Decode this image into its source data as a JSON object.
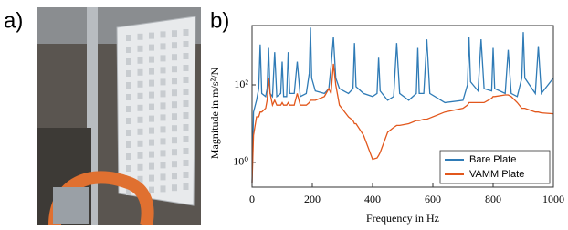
{
  "panel_labels": [
    "a)",
    "b)"
  ],
  "chart_data": {
    "type": "line",
    "xlabel": "Frequency in Hz",
    "ylabel": "Magnitude in m/s²/N",
    "x": [
      0,
      5,
      15,
      22,
      27,
      32,
      45,
      50,
      55,
      60,
      68,
      75,
      82,
      95,
      100,
      105,
      115,
      120,
      125,
      140,
      150,
      160,
      180,
      190,
      194,
      198,
      210,
      240,
      255,
      262,
      270,
      278,
      290,
      320,
      335,
      340,
      345,
      370,
      400,
      415,
      420,
      425,
      450,
      470,
      480,
      490,
      520,
      545,
      550,
      555,
      570,
      580,
      590,
      640,
      700,
      715,
      720,
      725,
      750,
      760,
      770,
      795,
      800,
      805,
      840,
      850,
      860,
      880,
      895,
      900,
      905,
      940,
      950,
      960,
      1000
    ],
    "series": [
      {
        "name": "Bare Plate",
        "color": "#2f7bb6",
        "values": [
          0.3,
          20,
          40,
          80,
          1100,
          60,
          50,
          80,
          900,
          60,
          50,
          700,
          50,
          60,
          400,
          50,
          50,
          700,
          60,
          60,
          400,
          50,
          60,
          200,
          3000,
          150,
          70,
          60,
          80,
          300,
          1700,
          150,
          80,
          60,
          80,
          1200,
          90,
          60,
          50,
          60,
          500,
          70,
          40,
          50,
          1200,
          60,
          40,
          60,
          900,
          60,
          60,
          1500,
          60,
          35,
          40,
          100,
          1700,
          120,
          70,
          1500,
          80,
          70,
          900,
          80,
          60,
          800,
          60,
          50,
          150,
          2300,
          150,
          60,
          1000,
          60,
          150
        ]
      },
      {
        "name": "VAMM Plate",
        "color": "#e2571c",
        "values": [
          0.3,
          5,
          15,
          15,
          20,
          20,
          25,
          40,
          150,
          60,
          30,
          40,
          30,
          30,
          35,
          30,
          30,
          35,
          30,
          30,
          60,
          30,
          30,
          35,
          40,
          40,
          40,
          50,
          80,
          60,
          350,
          100,
          30,
          15,
          12,
          10,
          10,
          5,
          1.2,
          1.3,
          1.5,
          1.8,
          6,
          8,
          9,
          9,
          10,
          12,
          12,
          12,
          13,
          13,
          14,
          20,
          25,
          30,
          35,
          35,
          35,
          35,
          35,
          45,
          50,
          50,
          55,
          55,
          50,
          35,
          25,
          25,
          25,
          20,
          20,
          19,
          18
        ]
      }
    ],
    "xlim": [
      0,
      1000
    ],
    "xticks": [
      0,
      200,
      400,
      600,
      800,
      1000
    ],
    "ylim": [
      0.23,
      3400
    ],
    "yscale": "log",
    "yticks": [
      {
        "value": 1,
        "label": "10⁰"
      },
      {
        "value": 100,
        "label": "10²"
      }
    ],
    "grid": false,
    "legend": "lower right"
  }
}
